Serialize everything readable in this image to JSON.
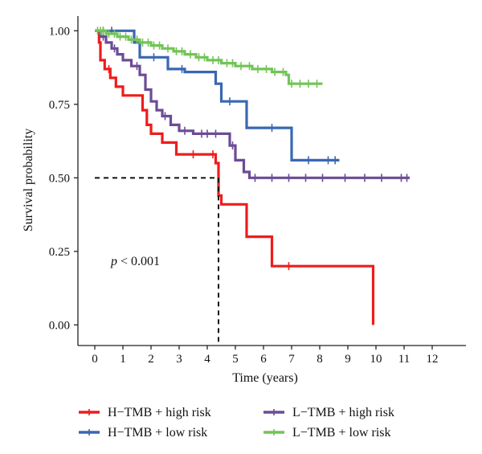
{
  "chart_data": {
    "type": "line",
    "subtype": "kaplan-meier",
    "title": "",
    "xlabel": "Time (years)",
    "ylabel": "Survival probability",
    "xlim": [
      -0.6,
      13.2
    ],
    "ylim": [
      -0.07,
      1.05
    ],
    "xticks": [
      0,
      1,
      2,
      3,
      4,
      5,
      6,
      7,
      8,
      9,
      10,
      11,
      12
    ],
    "yticks": [
      0.0,
      0.25,
      0.5,
      0.75,
      1.0
    ],
    "ytick_labels": [
      "0.00",
      "0.25",
      "0.50",
      "0.75",
      "1.00"
    ],
    "grid": false,
    "legend_position": "bottom",
    "annotation": {
      "p_symbol": "p",
      "text": " < 0.001",
      "x": 0.5,
      "y": 0.22
    },
    "median_line": {
      "y": 0.5,
      "x_end": 4.4
    },
    "series": [
      {
        "name": "H−TMB + high risk",
        "color": "#ee1c1c",
        "steps": [
          [
            0,
            1.0
          ],
          [
            0.15,
            0.96
          ],
          [
            0.2,
            0.9
          ],
          [
            0.35,
            0.87
          ],
          [
            0.55,
            0.84
          ],
          [
            0.75,
            0.81
          ],
          [
            1.0,
            0.78
          ],
          [
            1.6,
            0.78
          ],
          [
            1.7,
            0.73
          ],
          [
            1.85,
            0.68
          ],
          [
            2.0,
            0.65
          ],
          [
            2.4,
            0.62
          ],
          [
            2.9,
            0.58
          ],
          [
            4.3,
            0.55
          ],
          [
            4.4,
            0.44
          ],
          [
            4.5,
            0.41
          ],
          [
            5.4,
            0.3
          ],
          [
            6.3,
            0.2
          ],
          [
            9.9,
            0.0
          ]
        ],
        "end_x": 9.9,
        "censor": [
          0.5,
          3.5,
          4.2,
          6.9
        ]
      },
      {
        "name": "H−TMB + low risk",
        "color": "#3a67b1",
        "steps": [
          [
            0,
            1.0
          ],
          [
            1.4,
            0.96
          ],
          [
            1.6,
            0.91
          ],
          [
            2.6,
            0.87
          ],
          [
            3.2,
            0.86
          ],
          [
            4.3,
            0.82
          ],
          [
            4.5,
            0.76
          ],
          [
            5.4,
            0.67
          ],
          [
            7.0,
            0.56
          ]
        ],
        "end_x": 8.7,
        "censor": [
          0.3,
          0.6,
          2.1,
          3.1,
          4.8,
          6.3,
          7.6,
          8.3,
          8.55
        ]
      },
      {
        "name": "L−TMB + high risk",
        "color": "#6b4c95",
        "steps": [
          [
            0,
            1.0
          ],
          [
            0.2,
            0.98
          ],
          [
            0.4,
            0.96
          ],
          [
            0.6,
            0.94
          ],
          [
            0.8,
            0.92
          ],
          [
            1.0,
            0.9
          ],
          [
            1.3,
            0.88
          ],
          [
            1.6,
            0.85
          ],
          [
            1.8,
            0.8
          ],
          [
            2.0,
            0.76
          ],
          [
            2.2,
            0.73
          ],
          [
            2.4,
            0.71
          ],
          [
            2.7,
            0.68
          ],
          [
            3.0,
            0.66
          ],
          [
            3.5,
            0.65
          ],
          [
            4.8,
            0.61
          ],
          [
            5.0,
            0.56
          ],
          [
            5.3,
            0.52
          ],
          [
            5.5,
            0.5
          ]
        ],
        "end_x": 11.2,
        "censor": [
          0.3,
          0.7,
          1.5,
          2.5,
          3.2,
          3.8,
          4.0,
          4.3,
          4.9,
          5.7,
          6.3,
          6.9,
          7.5,
          8.1,
          8.9,
          9.6,
          10.2,
          10.9,
          11.1
        ]
      },
      {
        "name": "L−TMB + low risk",
        "color": "#72c456",
        "steps": [
          [
            0,
            1.0
          ],
          [
            0.4,
            0.99
          ],
          [
            0.8,
            0.98
          ],
          [
            1.2,
            0.97
          ],
          [
            1.6,
            0.96
          ],
          [
            2.0,
            0.95
          ],
          [
            2.4,
            0.94
          ],
          [
            2.8,
            0.93
          ],
          [
            3.2,
            0.92
          ],
          [
            3.6,
            0.91
          ],
          [
            4.0,
            0.9
          ],
          [
            4.5,
            0.89
          ],
          [
            5.0,
            0.88
          ],
          [
            5.6,
            0.87
          ],
          [
            6.3,
            0.86
          ],
          [
            6.8,
            0.85
          ],
          [
            6.9,
            0.82
          ]
        ],
        "end_x": 8.1,
        "censor": [
          0.1,
          0.2,
          0.3,
          0.5,
          0.7,
          0.9,
          1.1,
          1.3,
          1.5,
          1.7,
          1.9,
          2.1,
          2.3,
          2.6,
          2.9,
          3.1,
          3.4,
          3.7,
          3.9,
          4.2,
          4.4,
          4.7,
          4.9,
          5.2,
          5.5,
          5.8,
          6.1,
          6.4,
          6.7,
          7.0,
          7.3,
          7.6,
          7.9
        ]
      }
    ]
  }
}
